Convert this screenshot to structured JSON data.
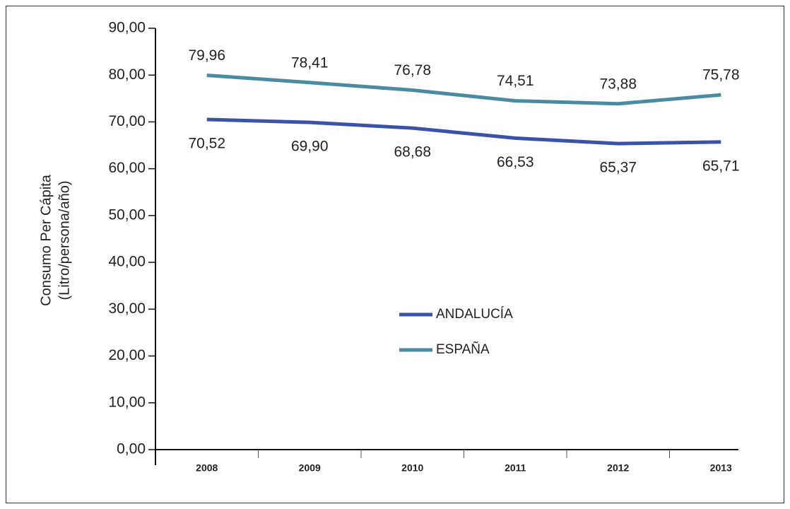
{
  "chart_data": {
    "type": "line",
    "ylabel": [
      "Consumo Per Cápita",
      "(Litro/persona/año)"
    ],
    "categories": [
      "2008",
      "2009",
      "2010",
      "2011",
      "2012",
      "2013"
    ],
    "series": [
      {
        "name": "ANDALUCÍA",
        "color": "#3a52a8",
        "values": [
          70.52,
          69.9,
          68.68,
          66.53,
          65.37,
          65.71
        ],
        "value_labels": [
          "70,52",
          "69,90",
          "68,68",
          "66,53",
          "65,37",
          "65,71"
        ]
      },
      {
        "name": "ESPAÑA",
        "color": "#4a8ba2",
        "values": [
          79.96,
          78.41,
          76.78,
          74.51,
          73.88,
          75.78
        ],
        "value_labels": [
          "79,96",
          "78,41",
          "76,78",
          "74,51",
          "73,88",
          "75,78"
        ]
      }
    ],
    "ylim": [
      0,
      90
    ],
    "yticks": [
      {
        "value": 0,
        "label": "0,00"
      },
      {
        "value": 10,
        "label": "10,00"
      },
      {
        "value": 20,
        "label": "20,00"
      },
      {
        "value": 30,
        "label": "30,00"
      },
      {
        "value": 40,
        "label": "40,00"
      },
      {
        "value": 50,
        "label": "50,00"
      },
      {
        "value": 60,
        "label": "60,00"
      },
      {
        "value": 70,
        "label": "70,00"
      },
      {
        "value": 80,
        "label": "80,00"
      },
      {
        "value": 90,
        "label": "90,00"
      }
    ]
  }
}
